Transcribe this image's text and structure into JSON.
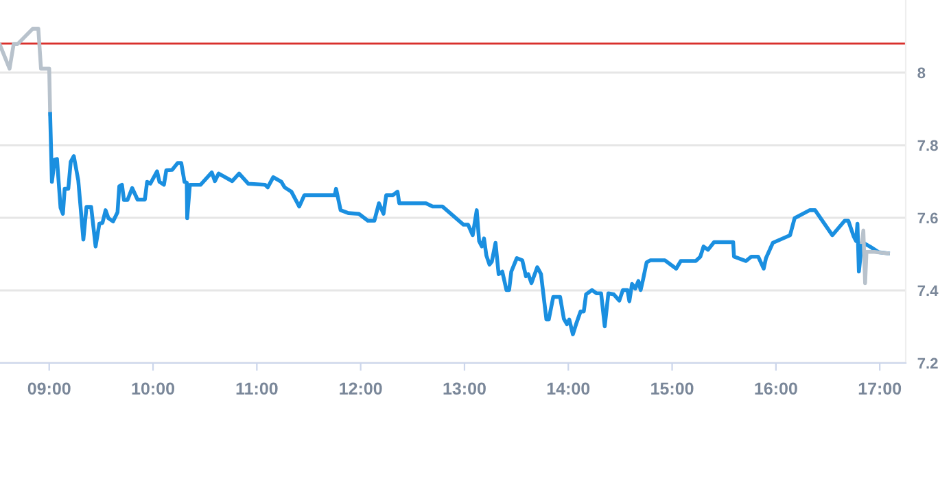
{
  "chart_data": {
    "type": "line",
    "grid": "y",
    "marker": "none",
    "line_style": "solid",
    "xlim": [
      8.526,
      17.25
    ],
    "xticks": [
      {
        "value": 9,
        "label": "09:00"
      },
      {
        "value": 10,
        "label": "10:00"
      },
      {
        "value": 11,
        "label": "11:00"
      },
      {
        "value": 12,
        "label": "12:00"
      },
      {
        "value": 13,
        "label": "13:00"
      },
      {
        "value": 14,
        "label": "14:00"
      },
      {
        "value": 15,
        "label": "15:00"
      },
      {
        "value": 16,
        "label": "16:00"
      },
      {
        "value": 17,
        "label": "17:00"
      }
    ],
    "ylim": [
      7.2,
      8.2
    ],
    "yticks": [
      7.2,
      7.4,
      7.6,
      7.8,
      8
    ],
    "ref_lines": [
      {
        "axis": "y",
        "value": 8.08,
        "label": null,
        "color": "#d9302c"
      }
    ],
    "series": [
      {
        "color": "#b8c2cc",
        "x": [
          8.526,
          8.618,
          8.658,
          8.697,
          8.842,
          8.895,
          8.921,
          9.0,
          9.009
        ],
        "values": [
          8.076,
          8.011,
          8.079,
          8.079,
          8.121,
          8.121,
          8.011,
          8.011,
          7.886
        ]
      },
      {
        "color": "#1a8fe0",
        "x": [
          9.009,
          9.026,
          9.053,
          9.075,
          9.109,
          9.132,
          9.149,
          9.184,
          9.207,
          9.237,
          9.28,
          9.329,
          9.359,
          9.404,
          9.447,
          9.483,
          9.513,
          9.543,
          9.57,
          9.615,
          9.658,
          9.675,
          9.701,
          9.72,
          9.754,
          9.799,
          9.851,
          9.921,
          9.943,
          9.974,
          10.039,
          10.062,
          10.105,
          10.128,
          10.184,
          10.237,
          10.272,
          10.303,
          10.325,
          10.329,
          10.355,
          10.457,
          10.566,
          10.596,
          10.632,
          10.763,
          10.829,
          10.917,
          11.079,
          11.105,
          11.158,
          11.237,
          11.267,
          11.333,
          11.408,
          11.457,
          11.75,
          11.763,
          11.807,
          11.882,
          11.983,
          12.07,
          12.132,
          12.176,
          12.22,
          12.246,
          12.307,
          12.355,
          12.372,
          12.628,
          12.693,
          12.789,
          12.991,
          13.035,
          13.079,
          13.118,
          13.141,
          13.167,
          13.188,
          13.211,
          13.241,
          13.263,
          13.299,
          13.329,
          13.364,
          13.404,
          13.43,
          13.451,
          13.504,
          13.557,
          13.592,
          13.614,
          13.645,
          13.701,
          13.737,
          13.789,
          13.812,
          13.855,
          13.921,
          13.957,
          13.987,
          14.009,
          14.044,
          14.075,
          14.118,
          14.149,
          14.171,
          14.228,
          14.272,
          14.316,
          14.351,
          14.386,
          14.438,
          14.491,
          14.526,
          14.57,
          14.588,
          14.614,
          14.645,
          14.675,
          14.697,
          14.72,
          14.754,
          14.789,
          14.93,
          15.039,
          15.083,
          15.228,
          15.272,
          15.303,
          15.346,
          15.404,
          15.588,
          15.596,
          15.711,
          15.763,
          15.829,
          15.882,
          15.904,
          15.97,
          16.136,
          16.18,
          16.325,
          16.377,
          16.543,
          16.662,
          16.697,
          16.75,
          16.772,
          16.785,
          16.799,
          16.829,
          16.904,
          16.991,
          17.079
        ],
        "values": [
          7.886,
          7.699,
          7.76,
          7.762,
          7.628,
          7.611,
          7.68,
          7.68,
          7.754,
          7.77,
          7.703,
          7.54,
          7.63,
          7.63,
          7.521,
          7.584,
          7.586,
          7.621,
          7.599,
          7.59,
          7.615,
          7.687,
          7.691,
          7.649,
          7.649,
          7.682,
          7.65,
          7.65,
          7.699,
          7.694,
          7.728,
          7.699,
          7.691,
          7.731,
          7.732,
          7.751,
          7.751,
          7.699,
          7.697,
          7.599,
          7.691,
          7.691,
          7.725,
          7.701,
          7.722,
          7.701,
          7.722,
          7.694,
          7.691,
          7.684,
          7.712,
          7.699,
          7.684,
          7.672,
          7.631,
          7.662,
          7.662,
          7.68,
          7.621,
          7.613,
          7.611,
          7.592,
          7.592,
          7.64,
          7.611,
          7.662,
          7.662,
          7.672,
          7.64,
          7.64,
          7.631,
          7.631,
          7.581,
          7.581,
          7.552,
          7.621,
          7.536,
          7.521,
          7.543,
          7.496,
          7.471,
          7.479,
          7.531,
          7.445,
          7.452,
          7.401,
          7.401,
          7.452,
          7.489,
          7.483,
          7.439,
          7.445,
          7.42,
          7.464,
          7.445,
          7.32,
          7.32,
          7.382,
          7.382,
          7.322,
          7.307,
          7.32,
          7.279,
          7.307,
          7.342,
          7.342,
          7.389,
          7.401,
          7.392,
          7.392,
          7.301,
          7.392,
          7.389,
          7.372,
          7.401,
          7.401,
          7.37,
          7.418,
          7.405,
          7.426,
          7.401,
          7.43,
          7.477,
          7.483,
          7.483,
          7.46,
          7.481,
          7.481,
          7.493,
          7.521,
          7.512,
          7.533,
          7.533,
          7.493,
          7.481,
          7.493,
          7.493,
          7.46,
          7.489,
          7.531,
          7.552,
          7.599,
          7.621,
          7.621,
          7.552,
          7.592,
          7.592,
          7.548,
          7.536,
          7.584,
          7.452,
          7.533,
          7.521,
          7.505,
          7.502
        ]
      },
      {
        "color": "#b8c2cc",
        "x": [
          16.829,
          16.842,
          16.859,
          16.872,
          16.947,
          17.079
        ],
        "values": [
          7.533,
          7.565,
          7.42,
          7.506,
          7.506,
          7.502
        ]
      }
    ]
  }
}
